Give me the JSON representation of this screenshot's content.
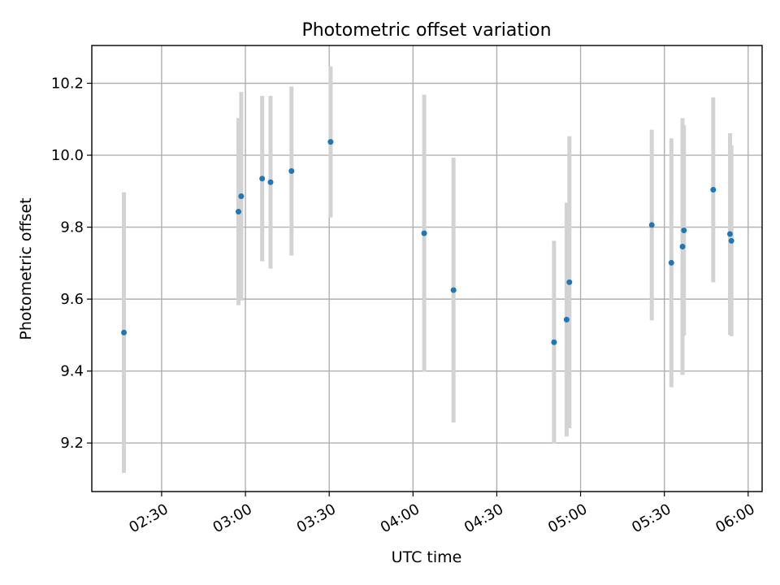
{
  "chart_data": {
    "type": "scatter",
    "title": "Photometric offset variation",
    "xlabel": "UTC time",
    "ylabel": "Photometric offset",
    "x_format": "HH:MM",
    "xlim": [
      "02:05",
      "06:05"
    ],
    "ylim": [
      9.065,
      10.305
    ],
    "grid": true,
    "x_ticks": [
      "02:30",
      "03:00",
      "03:30",
      "04:00",
      "04:30",
      "05:00",
      "05:30",
      "06:00"
    ],
    "y_ticks": [
      "9.2",
      "9.4",
      "9.6",
      "9.8",
      "10.0",
      "10.2"
    ],
    "colors": {
      "point": "#1f77b4",
      "errorbar": "#d3d3d3",
      "grid": "#b0b0b0"
    },
    "points": [
      {
        "x": "02:16:30",
        "y": 9.507,
        "err": 0.39
      },
      {
        "x": "02:57:30",
        "y": 9.843,
        "err": 0.26
      },
      {
        "x": "02:58:30",
        "y": 9.886,
        "err": 0.29
      },
      {
        "x": "03:06:00",
        "y": 9.935,
        "err": 0.23
      },
      {
        "x": "03:09:00",
        "y": 9.925,
        "err": 0.24
      },
      {
        "x": "03:16:30",
        "y": 9.956,
        "err": 0.235
      },
      {
        "x": "03:30:30",
        "y": 10.037,
        "err": 0.21
      },
      {
        "x": "04:04:00",
        "y": 9.783,
        "err": 0.385
      },
      {
        "x": "04:14:30",
        "y": 9.625,
        "err": 0.368
      },
      {
        "x": "04:50:30",
        "y": 9.48,
        "err": 0.282
      },
      {
        "x": "04:55:00",
        "y": 9.543,
        "err": 0.325
      },
      {
        "x": "04:56:00",
        "y": 9.647,
        "err": 0.406
      },
      {
        "x": "05:25:30",
        "y": 9.806,
        "err": 0.265
      },
      {
        "x": "05:32:30",
        "y": 9.701,
        "err": 0.346
      },
      {
        "x": "05:36:30",
        "y": 9.746,
        "err": 0.357
      },
      {
        "x": "05:37:00",
        "y": 9.791,
        "err": 0.292
      },
      {
        "x": "05:47:30",
        "y": 9.904,
        "err": 0.257
      },
      {
        "x": "05:53:30",
        "y": 9.781,
        "err": 0.28
      },
      {
        "x": "05:54:00",
        "y": 9.762,
        "err": 0.265
      }
    ]
  }
}
